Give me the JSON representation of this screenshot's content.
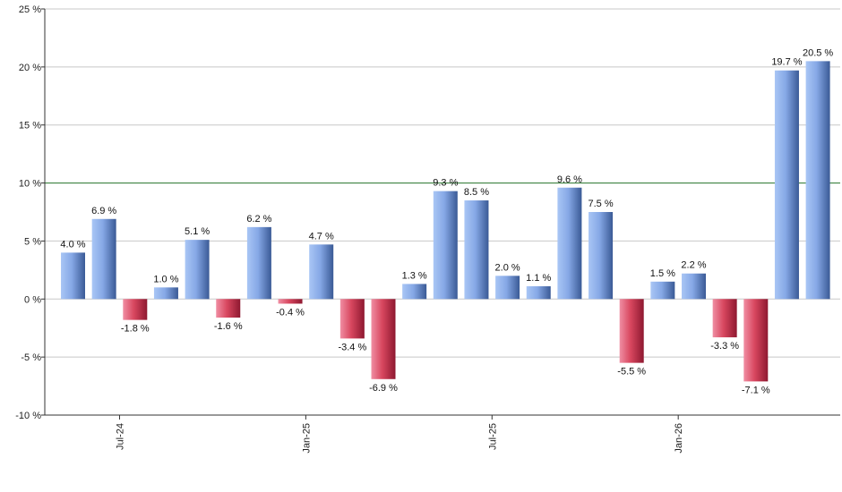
{
  "chart_data": {
    "type": "bar",
    "title": "",
    "xlabel": "",
    "ylabel": "",
    "ylim": [
      -10,
      25
    ],
    "yticks": [
      -10,
      -5,
      0,
      5,
      10,
      15,
      20,
      25
    ],
    "ytick_labels": [
      "-10 %",
      "-5 %",
      "0 %",
      "5 %",
      "10 %",
      "15 %",
      "20 %",
      "25 %"
    ],
    "grid": true,
    "reference_line": {
      "value": 10,
      "color": "#2e7d32"
    },
    "values": [
      4.0,
      6.9,
      -1.8,
      1.0,
      5.1,
      -1.6,
      6.2,
      -0.4,
      4.7,
      -3.4,
      -6.9,
      1.3,
      9.3,
      8.5,
      2.0,
      1.1,
      9.6,
      7.5,
      -5.5,
      1.5,
      2.2,
      -3.3,
      -7.1,
      19.7,
      20.5
    ],
    "data_labels": [
      "4.0 %",
      "6.9 %",
      "-1.8 %",
      "1.0 %",
      "5.1 %",
      "-1.6 %",
      "6.2 %",
      "-0.4 %",
      "4.7 %",
      "-3.4 %",
      "-6.9 %",
      "1.3 %",
      "9.3 %",
      "8.5 %",
      "2.0 %",
      "1.1 %",
      "9.6 %",
      "7.5 %",
      "-5.5 %",
      "1.5 %",
      "2.2 %",
      "-3.3 %",
      "-7.1 %",
      "19.7 %",
      "20.5 %"
    ],
    "x_tick_labels": [
      {
        "label": "Jul-24",
        "after_bar_index": 2
      },
      {
        "label": "Jan-25",
        "after_bar_index": 8
      },
      {
        "label": "Jul-25",
        "after_bar_index": 14
      },
      {
        "label": "Jan-26",
        "after_bar_index": 20
      }
    ],
    "colors": {
      "positive": "#6f94d6",
      "negative": "#c8294f",
      "grid": "#c8c8c8",
      "axis": "#333333"
    }
  }
}
